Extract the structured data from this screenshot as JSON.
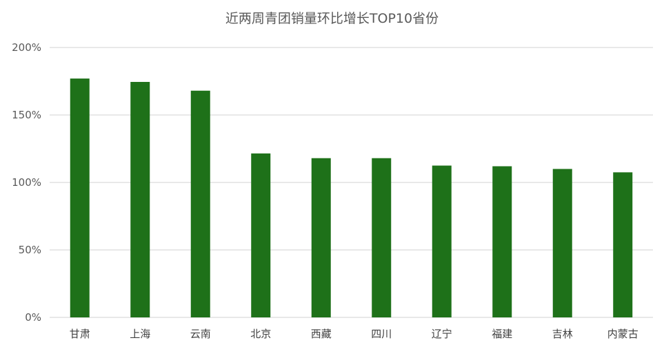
{
  "chart_data": {
    "type": "bar",
    "title": "近两周青团销量环比增长TOP10省份",
    "xlabel": "",
    "ylabel": "",
    "categories": [
      "甘肃",
      "上海",
      "云南",
      "北京",
      "西藏",
      "四川",
      "辽宁",
      "福建",
      "吉林",
      "内蒙古"
    ],
    "values": [
      177,
      174.5,
      168,
      121.5,
      118,
      118,
      112.5,
      112,
      110,
      107.5
    ],
    "value_unit": "%",
    "ylim": [
      0,
      200
    ],
    "yticks": [
      0,
      50,
      100,
      150,
      200
    ],
    "ytick_labels": [
      "0%",
      "50%",
      "100%",
      "150%",
      "200%"
    ],
    "grid": true,
    "legend": "none",
    "bar_color": "#1e7119",
    "grid_color": "#d9d9d9"
  }
}
